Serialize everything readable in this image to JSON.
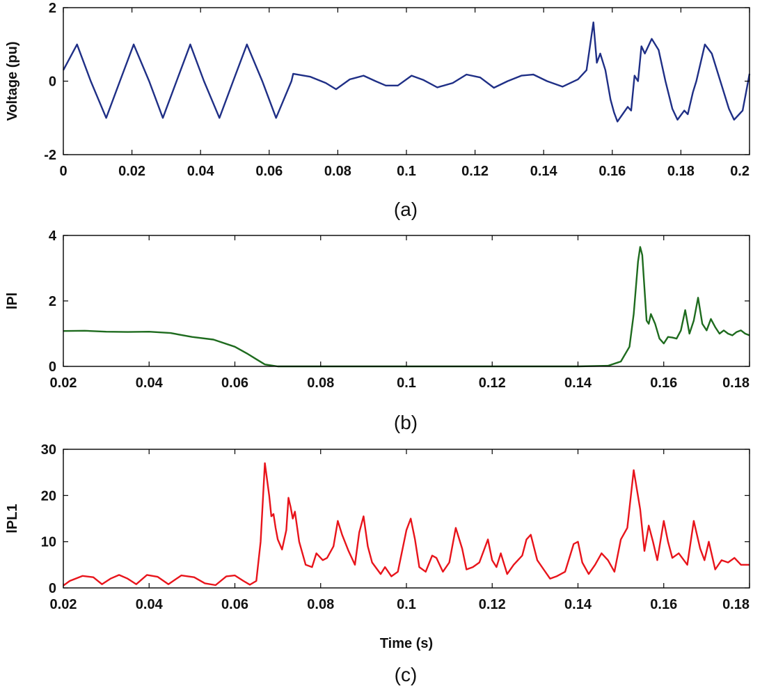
{
  "chart_data": [
    {
      "type": "line",
      "caption": "(a)",
      "ylabel": "Voltage (pu)",
      "xlabel": "",
      "xlim": [
        0,
        0.2
      ],
      "ylim": [
        -2,
        2
      ],
      "xticks": [
        "0",
        "0.02",
        "0.04",
        "0.06",
        "0.08",
        "0.1",
        "0.12",
        "0.14",
        "0.16",
        "0.18",
        "0.2"
      ],
      "yticks": [
        "-2",
        "0",
        "2"
      ],
      "color": "#1f2f86",
      "series": [
        {
          "name": "Voltage",
          "points": [
            [
              0.0,
              0.3
            ],
            [
              0.004,
              1.0
            ],
            [
              0.008,
              0.0
            ],
            [
              0.0125,
              -1.0
            ],
            [
              0.0165,
              0.0
            ],
            [
              0.0205,
              1.0
            ],
            [
              0.025,
              0.0
            ],
            [
              0.029,
              -1.0
            ],
            [
              0.033,
              0.0
            ],
            [
              0.037,
              1.0
            ],
            [
              0.041,
              0.0
            ],
            [
              0.0455,
              -1.0
            ],
            [
              0.0495,
              0.0
            ],
            [
              0.0535,
              1.0
            ],
            [
              0.058,
              0.0
            ],
            [
              0.062,
              -1.0
            ],
            [
              0.0665,
              0.0
            ],
            [
              0.067,
              0.2
            ],
            [
              0.072,
              0.12
            ],
            [
              0.0765,
              -0.05
            ],
            [
              0.0795,
              -0.22
            ],
            [
              0.0835,
              0.05
            ],
            [
              0.0875,
              0.15
            ],
            [
              0.091,
              0.0
            ],
            [
              0.094,
              -0.12
            ],
            [
              0.0975,
              -0.12
            ],
            [
              0.1015,
              0.15
            ],
            [
              0.105,
              0.03
            ],
            [
              0.109,
              -0.17
            ],
            [
              0.1135,
              -0.05
            ],
            [
              0.1175,
              0.18
            ],
            [
              0.1215,
              0.1
            ],
            [
              0.1255,
              -0.18
            ],
            [
              0.1295,
              0.0
            ],
            [
              0.1335,
              0.15
            ],
            [
              0.137,
              0.18
            ],
            [
              0.141,
              0.0
            ],
            [
              0.1455,
              -0.15
            ],
            [
              0.15,
              0.05
            ],
            [
              0.1525,
              0.3
            ],
            [
              0.1545,
              1.6
            ],
            [
              0.1555,
              0.5
            ],
            [
              0.1565,
              0.75
            ],
            [
              0.158,
              0.3
            ],
            [
              0.1595,
              -0.5
            ],
            [
              0.1605,
              -0.85
            ],
            [
              0.1615,
              -1.1
            ],
            [
              0.163,
              -0.9
            ],
            [
              0.1645,
              -0.7
            ],
            [
              0.1655,
              -0.8
            ],
            [
              0.1665,
              0.15
            ],
            [
              0.1675,
              0.0
            ],
            [
              0.1685,
              0.95
            ],
            [
              0.1695,
              0.75
            ],
            [
              0.1715,
              1.15
            ],
            [
              0.1735,
              0.85
            ],
            [
              0.1755,
              0.0
            ],
            [
              0.1775,
              -0.75
            ],
            [
              0.179,
              -1.05
            ],
            [
              0.181,
              -0.8
            ],
            [
              0.182,
              -0.9
            ],
            [
              0.1835,
              -0.3
            ],
            [
              0.1845,
              0.0
            ],
            [
              0.187,
              1.0
            ],
            [
              0.189,
              0.75
            ],
            [
              0.1915,
              0.0
            ],
            [
              0.194,
              -0.75
            ],
            [
              0.1955,
              -1.05
            ],
            [
              0.197,
              -0.9
            ],
            [
              0.198,
              -0.8
            ],
            [
              0.199,
              -0.3
            ],
            [
              0.2,
              0.2
            ]
          ]
        }
      ]
    },
    {
      "type": "line",
      "caption": "(b)",
      "ylabel": "lPl",
      "xlabel": "",
      "xlim": [
        0.02,
        0.18
      ],
      "ylim": [
        0,
        4
      ],
      "xticks": [
        "0.02",
        "0.04",
        "0.06",
        "0.08",
        "0.1",
        "0.12",
        "0.14",
        "0.16",
        "0.18"
      ],
      "yticks": [
        "0",
        "2",
        "4"
      ],
      "color": "#1e6b1e",
      "series": [
        {
          "name": "lPl",
          "points": [
            [
              0.02,
              1.08
            ],
            [
              0.025,
              1.09
            ],
            [
              0.03,
              1.06
            ],
            [
              0.035,
              1.05
            ],
            [
              0.04,
              1.06
            ],
            [
              0.045,
              1.02
            ],
            [
              0.05,
              0.9
            ],
            [
              0.055,
              0.82
            ],
            [
              0.06,
              0.6
            ],
            [
              0.063,
              0.38
            ],
            [
              0.065,
              0.22
            ],
            [
              0.067,
              0.06
            ],
            [
              0.07,
              0.0
            ],
            [
              0.08,
              0.0
            ],
            [
              0.1,
              0.0
            ],
            [
              0.12,
              0.0
            ],
            [
              0.14,
              0.0
            ],
            [
              0.147,
              0.02
            ],
            [
              0.15,
              0.15
            ],
            [
              0.152,
              0.6
            ],
            [
              0.153,
              1.6
            ],
            [
              0.154,
              3.2
            ],
            [
              0.1545,
              3.65
            ],
            [
              0.155,
              3.4
            ],
            [
              0.156,
              1.4
            ],
            [
              0.1565,
              1.3
            ],
            [
              0.157,
              1.6
            ],
            [
              0.158,
              1.3
            ],
            [
              0.159,
              0.85
            ],
            [
              0.16,
              0.7
            ],
            [
              0.161,
              0.9
            ],
            [
              0.162,
              0.88
            ],
            [
              0.163,
              0.85
            ],
            [
              0.164,
              1.1
            ],
            [
              0.165,
              1.72
            ],
            [
              0.166,
              1.0
            ],
            [
              0.167,
              1.4
            ],
            [
              0.168,
              2.1
            ],
            [
              0.169,
              1.3
            ],
            [
              0.17,
              1.1
            ],
            [
              0.171,
              1.45
            ],
            [
              0.172,
              1.2
            ],
            [
              0.173,
              1.0
            ],
            [
              0.174,
              1.1
            ],
            [
              0.175,
              1.0
            ],
            [
              0.176,
              0.95
            ],
            [
              0.177,
              1.05
            ],
            [
              0.178,
              1.1
            ],
            [
              0.179,
              1.0
            ],
            [
              0.18,
              0.95
            ]
          ]
        }
      ]
    },
    {
      "type": "line",
      "caption": "(c)",
      "ylabel": "lPL1",
      "xlabel": "Time (s)",
      "xlim": [
        0.02,
        0.18
      ],
      "ylim": [
        0,
        30
      ],
      "xticks": [
        "0.02",
        "0.04",
        "0.06",
        "0.08",
        "0.1",
        "0.12",
        "0.14",
        "0.16",
        "0.18"
      ],
      "yticks": [
        "0",
        "10",
        "20",
        "30"
      ],
      "color": "#e8141b",
      "series": [
        {
          "name": "lPL1",
          "points": [
            [
              0.02,
              0.5
            ],
            [
              0.0215,
              1.5
            ],
            [
              0.0245,
              2.6
            ],
            [
              0.027,
              2.3
            ],
            [
              0.029,
              0.8
            ],
            [
              0.031,
              2.0
            ],
            [
              0.033,
              2.8
            ],
            [
              0.035,
              2.0
            ],
            [
              0.037,
              0.8
            ],
            [
              0.0395,
              2.8
            ],
            [
              0.042,
              2.4
            ],
            [
              0.0445,
              0.8
            ],
            [
              0.0475,
              2.7
            ],
            [
              0.0505,
              2.3
            ],
            [
              0.053,
              1.0
            ],
            [
              0.0555,
              0.6
            ],
            [
              0.058,
              2.5
            ],
            [
              0.06,
              2.7
            ],
            [
              0.062,
              1.5
            ],
            [
              0.0635,
              0.7
            ],
            [
              0.065,
              1.5
            ],
            [
              0.066,
              10.0
            ],
            [
              0.067,
              27.0
            ],
            [
              0.068,
              20.0
            ],
            [
              0.0685,
              15.5
            ],
            [
              0.069,
              16.0
            ],
            [
              0.0695,
              13.0
            ],
            [
              0.07,
              10.5
            ],
            [
              0.071,
              8.3
            ],
            [
              0.072,
              12.5
            ],
            [
              0.0725,
              19.5
            ],
            [
              0.073,
              17.5
            ],
            [
              0.0735,
              15.0
            ],
            [
              0.074,
              16.5
            ],
            [
              0.075,
              10.0
            ],
            [
              0.0765,
              5.0
            ],
            [
              0.078,
              4.5
            ],
            [
              0.079,
              7.5
            ],
            [
              0.0805,
              6.0
            ],
            [
              0.0815,
              6.5
            ],
            [
              0.083,
              9.0
            ],
            [
              0.084,
              14.5
            ],
            [
              0.085,
              11.5
            ],
            [
              0.0865,
              8.0
            ],
            [
              0.088,
              5.0
            ],
            [
              0.089,
              12.0
            ],
            [
              0.09,
              15.5
            ],
            [
              0.091,
              9.0
            ],
            [
              0.092,
              5.5
            ],
            [
              0.094,
              3.0
            ],
            [
              0.095,
              4.5
            ],
            [
              0.0965,
              2.5
            ],
            [
              0.098,
              3.5
            ],
            [
              0.1,
              12.5
            ],
            [
              0.101,
              15.0
            ],
            [
              0.102,
              10.5
            ],
            [
              0.103,
              4.5
            ],
            [
              0.1045,
              3.5
            ],
            [
              0.106,
              7.0
            ],
            [
              0.107,
              6.5
            ],
            [
              0.1085,
              3.5
            ],
            [
              0.11,
              5.5
            ],
            [
              0.1115,
              13.0
            ],
            [
              0.113,
              8.5
            ],
            [
              0.114,
              4.0
            ],
            [
              0.1155,
              4.5
            ],
            [
              0.117,
              5.5
            ],
            [
              0.119,
              10.5
            ],
            [
              0.12,
              6.0
            ],
            [
              0.121,
              4.5
            ],
            [
              0.122,
              7.5
            ],
            [
              0.1235,
              3.0
            ],
            [
              0.125,
              5.0
            ],
            [
              0.127,
              7.0
            ],
            [
              0.128,
              10.5
            ],
            [
              0.129,
              11.5
            ],
            [
              0.1305,
              6.0
            ],
            [
              0.132,
              4.0
            ],
            [
              0.1335,
              2.0
            ],
            [
              0.135,
              2.5
            ],
            [
              0.137,
              3.5
            ],
            [
              0.139,
              9.5
            ],
            [
              0.14,
              10.0
            ],
            [
              0.141,
              5.5
            ],
            [
              0.1425,
              3.0
            ],
            [
              0.144,
              5.0
            ],
            [
              0.1455,
              7.5
            ],
            [
              0.147,
              6.0
            ],
            [
              0.1485,
              3.5
            ],
            [
              0.15,
              10.5
            ],
            [
              0.1515,
              13.0
            ],
            [
              0.153,
              25.5
            ],
            [
              0.1545,
              17.0
            ],
            [
              0.1555,
              8.0
            ],
            [
              0.1565,
              13.5
            ],
            [
              0.1575,
              10.0
            ],
            [
              0.1585,
              6.0
            ],
            [
              0.16,
              14.5
            ],
            [
              0.161,
              10.0
            ],
            [
              0.162,
              6.5
            ],
            [
              0.1635,
              7.5
            ],
            [
              0.1655,
              5.0
            ],
            [
              0.167,
              14.5
            ],
            [
              0.1685,
              8.5
            ],
            [
              0.1695,
              6.0
            ],
            [
              0.1705,
              10.0
            ],
            [
              0.172,
              4.0
            ],
            [
              0.1735,
              6.0
            ],
            [
              0.175,
              5.5
            ],
            [
              0.1765,
              6.5
            ],
            [
              0.178,
              5.0
            ],
            [
              0.18,
              5.0
            ]
          ]
        }
      ]
    }
  ]
}
